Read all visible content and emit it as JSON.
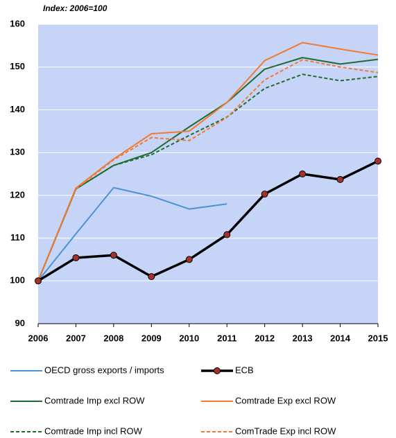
{
  "chart_data": {
    "type": "line",
    "subtitle": "Index: 2006=100",
    "x": [
      2006,
      2007,
      2008,
      2009,
      2010,
      2011,
      2012,
      2013,
      2014,
      2015
    ],
    "xlim": [
      2006,
      2015
    ],
    "xticks": [
      2006,
      2007,
      2008,
      2009,
      2010,
      2011,
      2012,
      2013,
      2014,
      2015
    ],
    "ylim": [
      90,
      160
    ],
    "yticks": [
      90,
      100,
      110,
      120,
      130,
      140,
      150,
      160
    ],
    "grid": true,
    "background": "#c6d5f7",
    "series": [
      {
        "name": "OECD gross exports / imports",
        "color": "#4a93d3",
        "dash": false,
        "marker": false,
        "width": 2,
        "values": [
          100,
          111,
          121.8,
          119.8,
          116.8,
          118,
          null,
          null,
          null,
          null
        ]
      },
      {
        "name": "ECB",
        "color": "#000000",
        "marker_color": "#a3322b",
        "dash": false,
        "marker": true,
        "width": 3.5,
        "values": [
          100,
          105.4,
          106,
          101,
          105,
          110.8,
          120.3,
          125,
          123.7,
          128
        ]
      },
      {
        "name": "Comtrade Imp excl ROW",
        "color": "#1e6b30",
        "dash": false,
        "marker": false,
        "width": 2,
        "values": [
          100,
          121.5,
          127,
          130,
          136,
          141.7,
          149.5,
          152.2,
          150.7,
          151.8
        ]
      },
      {
        "name": "Comtrade Exp excl ROW",
        "color": "#f07a32",
        "dash": false,
        "marker": false,
        "width": 2,
        "values": [
          100,
          121.7,
          128.5,
          134.4,
          135,
          141.7,
          151.5,
          155.7,
          154.2,
          152.8
        ]
      },
      {
        "name": "Comtrade Imp incl ROW",
        "color": "#1e6b30",
        "dash": true,
        "marker": false,
        "width": 2,
        "values": [
          100,
          121.5,
          127,
          129.5,
          134,
          138.3,
          145,
          148.3,
          146.8,
          147.8
        ]
      },
      {
        "name": "ComTrade Exp incl ROW",
        "color": "#f07a32",
        "dash": true,
        "marker": false,
        "width": 2,
        "values": [
          100,
          121.5,
          128.3,
          133.5,
          132.8,
          138.2,
          147,
          151.7,
          150,
          148.7
        ]
      }
    ]
  }
}
